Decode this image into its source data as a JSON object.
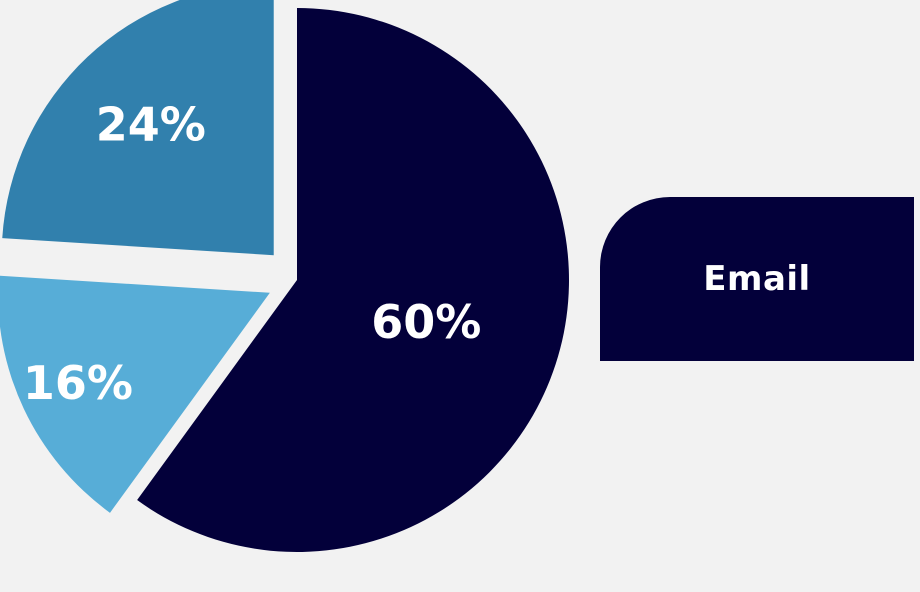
{
  "chart_data": {
    "type": "pie",
    "slices": [
      {
        "label": "60%",
        "value": 60,
        "color": "#03003a"
      },
      {
        "label": "16%",
        "value": 16,
        "color": "#57add7"
      },
      {
        "label": "24%",
        "value": 24,
        "color": "#3180ad"
      }
    ],
    "legend": {
      "entries": [
        "Email"
      ],
      "placement": "right"
    }
  },
  "colors": {
    "background": "#f2f2f2",
    "legend_box": "#03003a"
  }
}
